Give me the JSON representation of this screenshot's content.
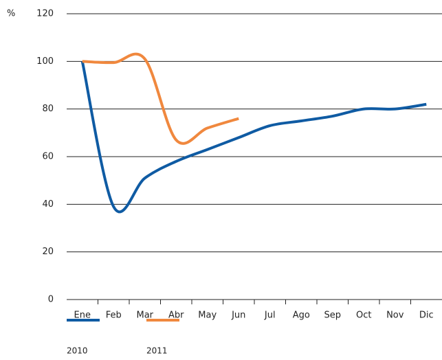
{
  "chart_data": {
    "type": "line",
    "y_label": "%",
    "categories": [
      "Ene",
      "Feb",
      "Mar",
      "Abr",
      "May",
      "Jun",
      "Jul",
      "Ago",
      "Sep",
      "Oct",
      "Nov",
      "Dic"
    ],
    "series": [
      {
        "name": "2010",
        "color": "#0f5ba3",
        "values": [
          100,
          39,
          51,
          58,
          63,
          68,
          73,
          75,
          77,
          80,
          80,
          82
        ]
      },
      {
        "name": "2011",
        "color": "#f0883e",
        "values": [
          100,
          99.5,
          101,
          67,
          72,
          76,
          null,
          null,
          null,
          null,
          null,
          null
        ]
      }
    ],
    "ylim": [
      0,
      120
    ],
    "yticks": [
      0,
      20,
      40,
      60,
      80,
      100,
      120
    ],
    "grid": true
  }
}
